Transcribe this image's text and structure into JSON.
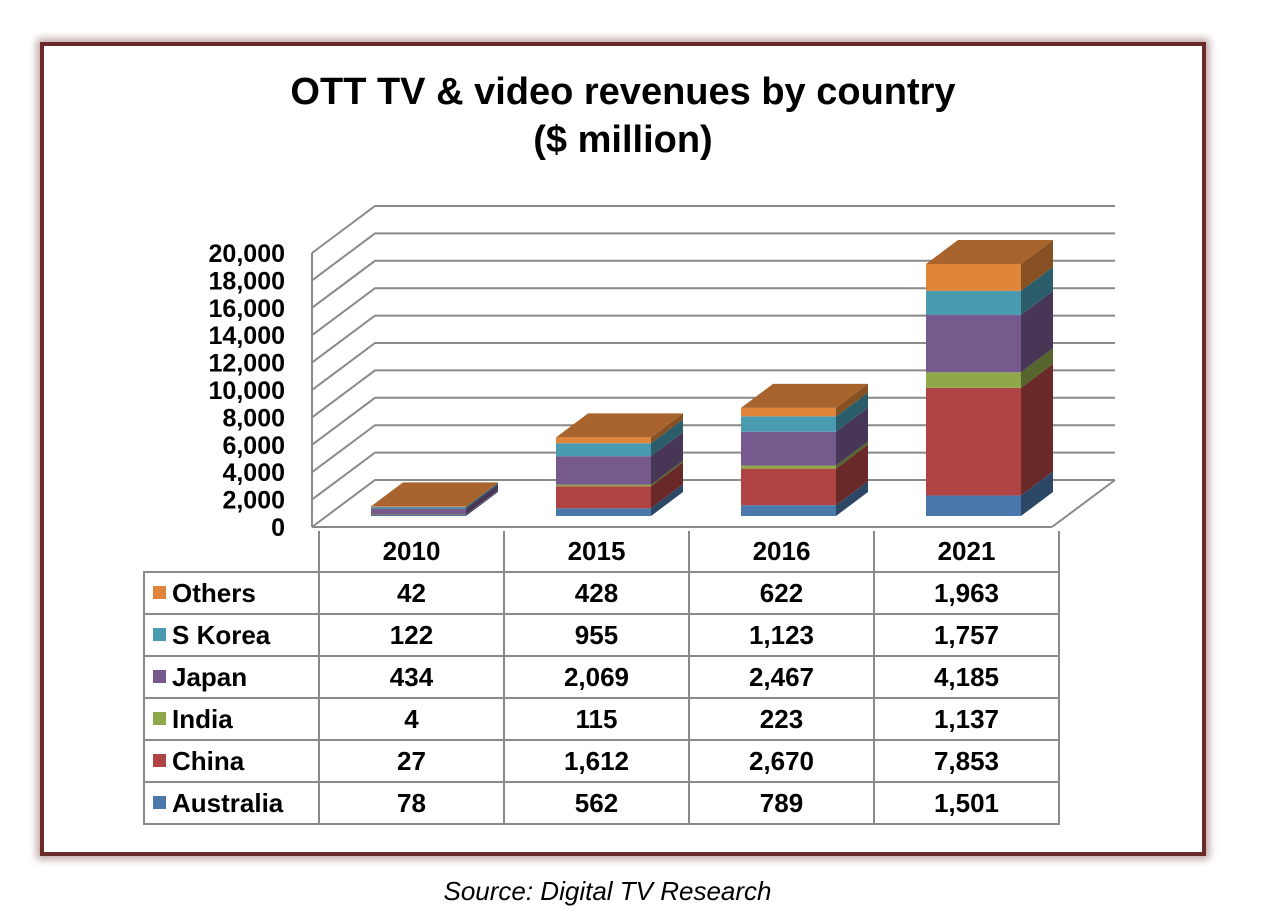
{
  "chart_data": {
    "type": "bar",
    "stacked": true,
    "three_d": true,
    "title": "OTT TV & video revenues by country",
    "subtitle": "($ million)",
    "categories": [
      "2010",
      "2015",
      "2016",
      "2021"
    ],
    "series": [
      {
        "name": "Australia",
        "color": "#4a78aa",
        "values": [
          78,
          562,
          789,
          1501
        ],
        "labels": [
          "78",
          "562",
          "789",
          "1,501"
        ]
      },
      {
        "name": "China",
        "color": "#b04444",
        "values": [
          27,
          1612,
          2670,
          7853
        ],
        "labels": [
          "27",
          "1,612",
          "2,670",
          "7,853"
        ]
      },
      {
        "name": "India",
        "color": "#8fa84a",
        "values": [
          4,
          115,
          223,
          1137
        ],
        "labels": [
          "4",
          "115",
          "223",
          "1,137"
        ]
      },
      {
        "name": "Japan",
        "color": "#765a8e",
        "values": [
          434,
          2069,
          2467,
          4185
        ],
        "labels": [
          "434",
          "2,069",
          "2,467",
          "4,185"
        ]
      },
      {
        "name": "S Korea",
        "color": "#4a9bb0",
        "values": [
          122,
          955,
          1123,
          1757
        ],
        "labels": [
          "122",
          "955",
          "1,123",
          "1,757"
        ]
      },
      {
        "name": "Others",
        "color": "#e0853a",
        "values": [
          42,
          428,
          622,
          1963
        ],
        "labels": [
          "42",
          "428",
          "622",
          "1,963"
        ]
      }
    ],
    "ylim": [
      0,
      20000
    ],
    "yticks": [
      "0",
      "2,000",
      "4,000",
      "6,000",
      "8,000",
      "10,000",
      "12,000",
      "14,000",
      "16,000",
      "18,000",
      "20,000"
    ],
    "grid": true,
    "legend": "data-table"
  },
  "source": "Source: Digital TV Research"
}
